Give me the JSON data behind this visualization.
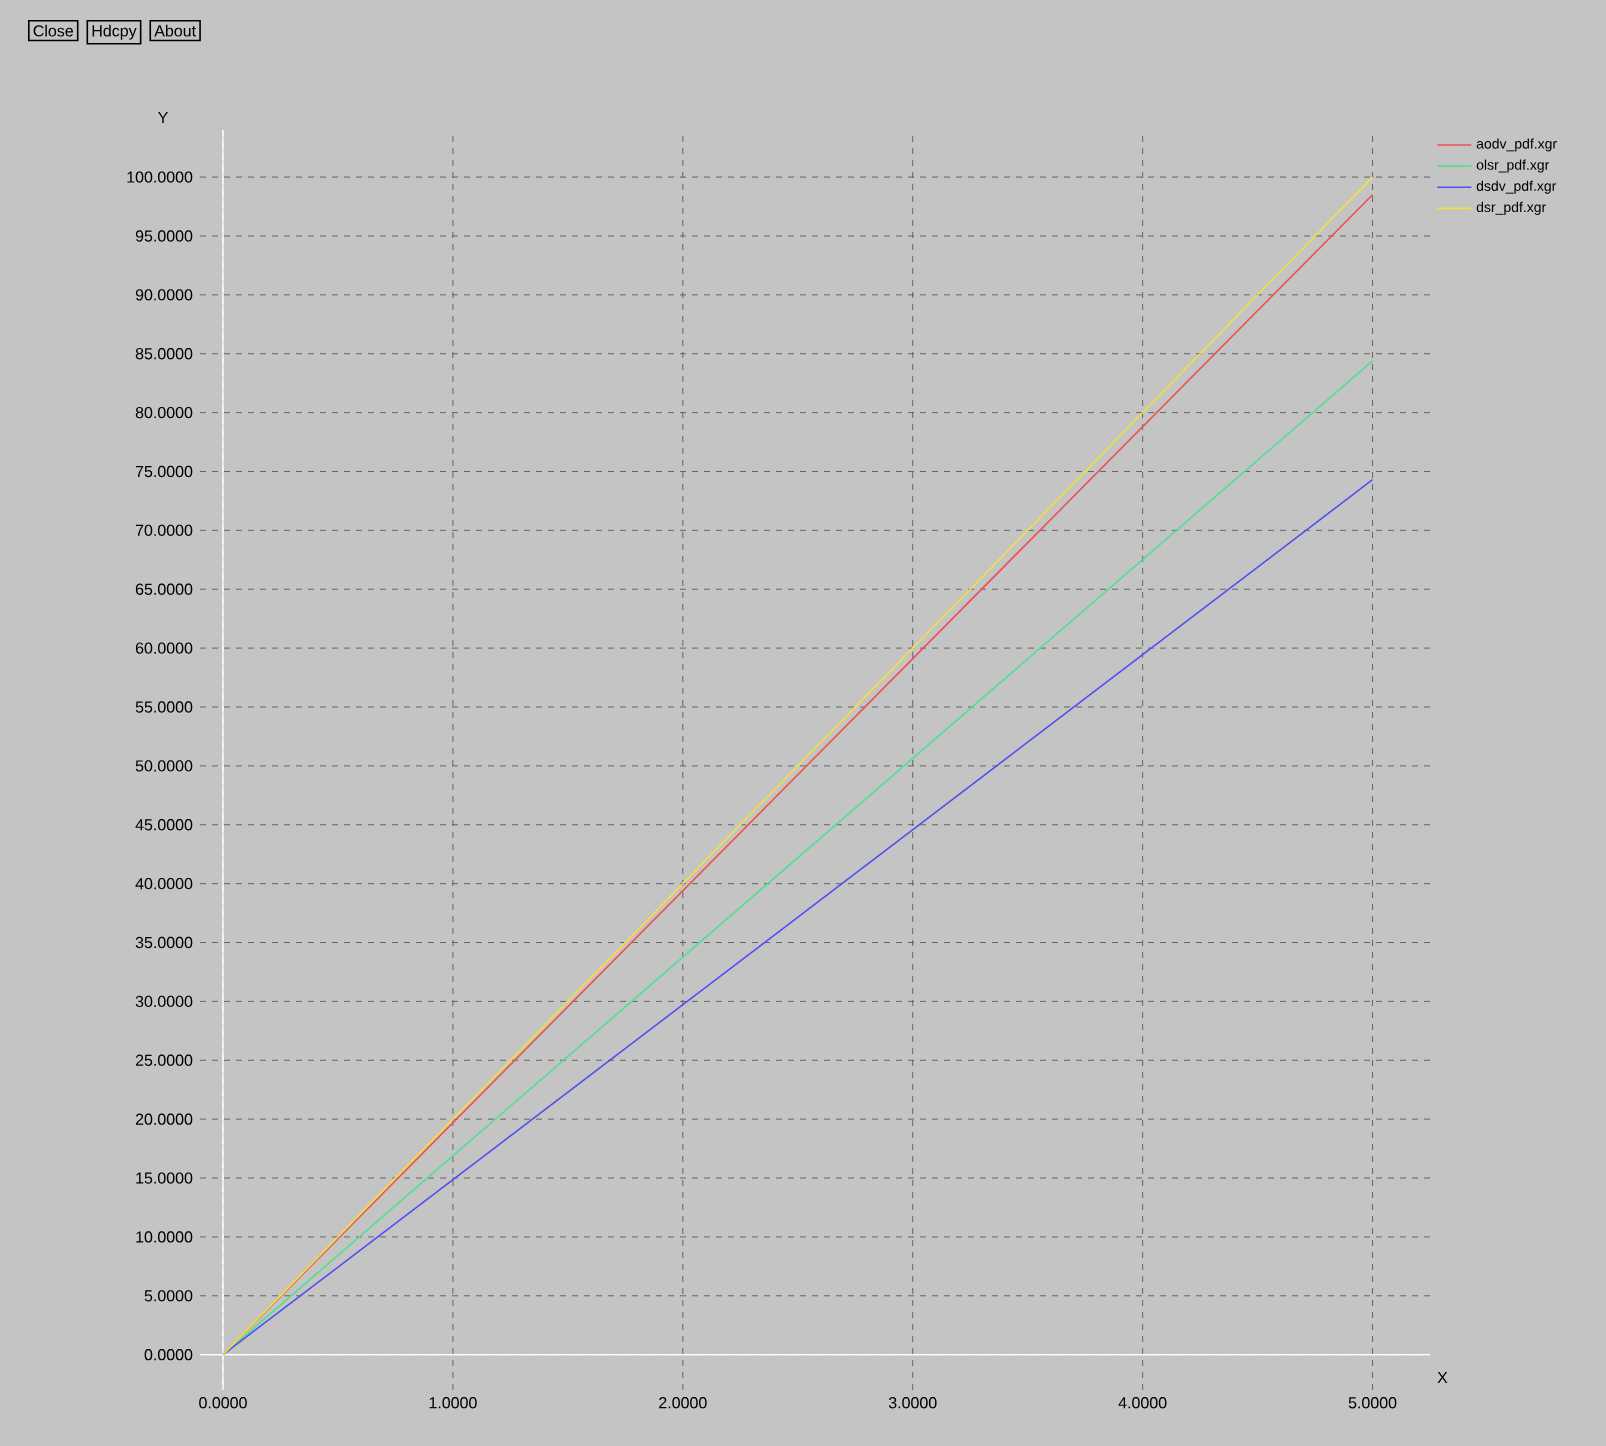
{
  "chart_data": {
    "type": "line",
    "xlabel": "X",
    "ylabel": "Y",
    "annotations": [
      "Close",
      "Hdcpy",
      "About"
    ],
    "x": [
      0,
      5
    ],
    "series": [
      {
        "name": "aodv_pdf.xgr",
        "color": "#f05050",
        "values": [
          0,
          98.5
        ]
      },
      {
        "name": "olsr_pdf.xgr",
        "color": "#50e090",
        "values": [
          0,
          84.4
        ]
      },
      {
        "name": "dsdv_pdf.xgr",
        "color": "#5050f0",
        "values": [
          0,
          74.3
        ]
      },
      {
        "name": "dsr_pdf.xgr",
        "color": "#f0e040",
        "values": [
          0,
          100
        ]
      }
    ],
    "xlim": [
      -0.1,
      5.25
    ],
    "ylim": [
      -3,
      104
    ],
    "xticks": [
      {
        "value": 0,
        "label": "0.0000"
      },
      {
        "value": 1,
        "label": "1.0000"
      },
      {
        "value": 2,
        "label": "2.0000"
      },
      {
        "value": 3,
        "label": "3.0000"
      },
      {
        "value": 4,
        "label": "4.0000"
      },
      {
        "value": 5,
        "label": "5.0000"
      }
    ],
    "yticks": [
      {
        "value": 0,
        "label": "0.0000"
      },
      {
        "value": 5,
        "label": "5.0000"
      },
      {
        "value": 10,
        "label": "10.0000"
      },
      {
        "value": 15,
        "label": "15.0000"
      },
      {
        "value": 20,
        "label": "20.0000"
      },
      {
        "value": 25,
        "label": "25.0000"
      },
      {
        "value": 30,
        "label": "30.0000"
      },
      {
        "value": 35,
        "label": "35.0000"
      },
      {
        "value": 40,
        "label": "40.0000"
      },
      {
        "value": 45,
        "label": "45.0000"
      },
      {
        "value": 50,
        "label": "50.0000"
      },
      {
        "value": 55,
        "label": "55.0000"
      },
      {
        "value": 60,
        "label": "60.0000"
      },
      {
        "value": 65,
        "label": "65.0000"
      },
      {
        "value": 70,
        "label": "70.0000"
      },
      {
        "value": 75,
        "label": "75.0000"
      },
      {
        "value": 80,
        "label": "80.0000"
      },
      {
        "value": 85,
        "label": "85.0000"
      },
      {
        "value": 90,
        "label": "90.0000"
      },
      {
        "value": 95,
        "label": "95.0000"
      },
      {
        "value": 100,
        "label": "100.0000"
      }
    ],
    "grid": true,
    "legend": "top right",
    "marker": "none",
    "line_style": "solid"
  }
}
